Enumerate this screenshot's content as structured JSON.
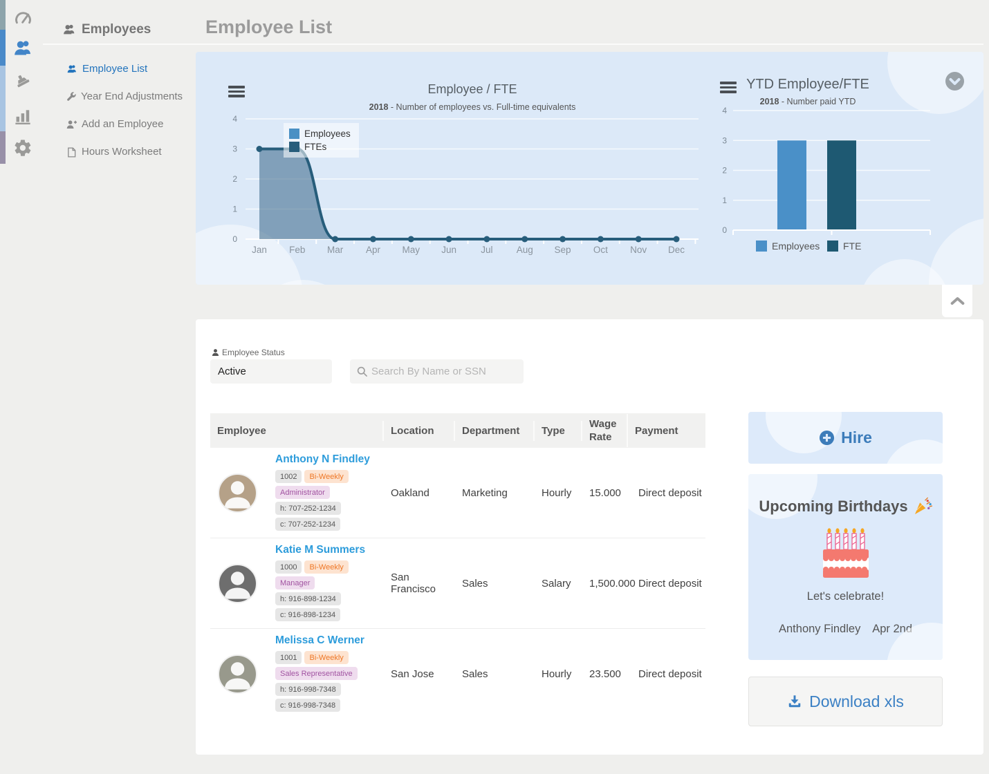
{
  "page": {
    "title": "Employee List"
  },
  "sidebar": {
    "header_label": "Employees",
    "rail": [
      {
        "icon": "gauge-icon",
        "strip_color": "#8da4ab",
        "active": false
      },
      {
        "icon": "users-icon",
        "strip_color": "#4a8ac9",
        "active": true
      },
      {
        "icon": "stamp-icon",
        "strip_color": "#a8c4e2",
        "active": false
      },
      {
        "icon": "bar-chart-icon",
        "strip_color": "#a8c4e2",
        "active": false
      },
      {
        "icon": "gear-icon",
        "strip_color": "#9890a8",
        "active": false
      }
    ],
    "items": [
      {
        "label": "Employee List",
        "icon": "users-icon",
        "active": true
      },
      {
        "label": "Year End Adjustments",
        "icon": "wrench-icon",
        "active": false
      },
      {
        "label": "Add an Employee",
        "icon": "user-plus-icon",
        "active": false
      },
      {
        "label": "Hours Worksheet",
        "icon": "file-icon",
        "active": false
      }
    ]
  },
  "chart_data": [
    {
      "type": "area",
      "title": "Employee / FTE",
      "subtitle_year": "2018",
      "subtitle_text": " - Number of employees vs. Full-time equivalents",
      "x": [
        "Jan",
        "Feb",
        "Mar",
        "Apr",
        "May",
        "Jun",
        "Jul",
        "Aug",
        "Sep",
        "Oct",
        "Nov",
        "Dec"
      ],
      "series": [
        {
          "name": "Employees",
          "values": [
            3,
            3,
            0,
            0,
            0,
            0,
            0,
            0,
            0,
            0,
            0,
            0
          ],
          "color": "#4a90c4",
          "fill": "rgba(54,100,135,0.55)"
        },
        {
          "name": "FTEs",
          "values": [
            3,
            3,
            0,
            0,
            0,
            0,
            0,
            0,
            0,
            0,
            0,
            0
          ],
          "color": "#275d7b"
        }
      ],
      "ylim": [
        0,
        4
      ],
      "yticks": [
        0,
        1,
        2,
        3,
        4
      ],
      "grid": true,
      "legend_position": "inside-top-left"
    },
    {
      "type": "bar",
      "title": "YTD Employee/FTE",
      "subtitle_year": "2018",
      "subtitle_text": " - Number paid YTD",
      "categories": [
        "Employees",
        "FTE"
      ],
      "values": [
        3,
        3
      ],
      "colors": [
        "#4a90c8",
        "#1e5972"
      ],
      "ylim": [
        0,
        4
      ],
      "yticks": [
        0,
        1,
        2,
        3,
        4
      ],
      "grid": true,
      "legend_position": "bottom"
    }
  ],
  "filters": {
    "status_label": "Employee Status",
    "status_value": "Active",
    "search_placeholder": "Search By Name or SSN"
  },
  "table": {
    "columns": [
      "Employee",
      "Location",
      "Department",
      "Type",
      "Wage Rate",
      "Payment"
    ],
    "rows": [
      {
        "name": "Anthony N Findley",
        "id": "1002",
        "schedule": "Bi-Weekly",
        "role": "Administrator",
        "home_phone": "h: 707-252-1234",
        "cell_phone": "c: 707-252-1234",
        "location": "Oakland",
        "department": "Marketing",
        "type": "Hourly",
        "wage_rate": "15.000",
        "payment": "Direct deposit",
        "avatar_color": "#b5a188"
      },
      {
        "name": "Katie M Summers",
        "id": "1000",
        "schedule": "Bi-Weekly",
        "role": "Manager",
        "home_phone": "h: 916-898-1234",
        "cell_phone": "c: 916-898-1234",
        "location": "San Francisco",
        "department": "Sales",
        "type": "Salary",
        "wage_rate": "1,500.000",
        "payment": "Direct deposit",
        "avatar_color": "#6e6e6e"
      },
      {
        "name": "Melissa C Werner",
        "id": "1001",
        "schedule": "Bi-Weekly",
        "role": "Sales Representative",
        "home_phone": "h: 916-998-7348",
        "cell_phone": "c: 916-998-7348",
        "location": "San Jose",
        "department": "Sales",
        "type": "Hourly",
        "wage_rate": "23.500",
        "payment": "Direct deposit",
        "avatar_color": "#98998c"
      }
    ]
  },
  "side": {
    "hire_label": "Hire",
    "birthdays_title": "Upcoming Birthdays",
    "celebrate_text": "Let's celebrate!",
    "birthday_name": "Anthony Findley",
    "birthday_date": "Apr 2nd",
    "download_label": "Download xls"
  },
  "icons": {
    "payment": "bolt-icon",
    "search": "magnifier-icon",
    "hire": "plus-circle-icon",
    "download": "download-icon",
    "collapse": "chevron-up-icon",
    "panel_toggle": "chevron-down-icon",
    "birthday": "cake-icon",
    "celebration": "party-popper-icon"
  },
  "colors": {
    "accent_blue": "#3b80c4",
    "link_blue": "#2d9cdb",
    "panel_blue": "#dce9f8",
    "card_blue": "#ddeafa",
    "bar_employees": "#4a90c8",
    "bar_fte": "#1e5972"
  }
}
